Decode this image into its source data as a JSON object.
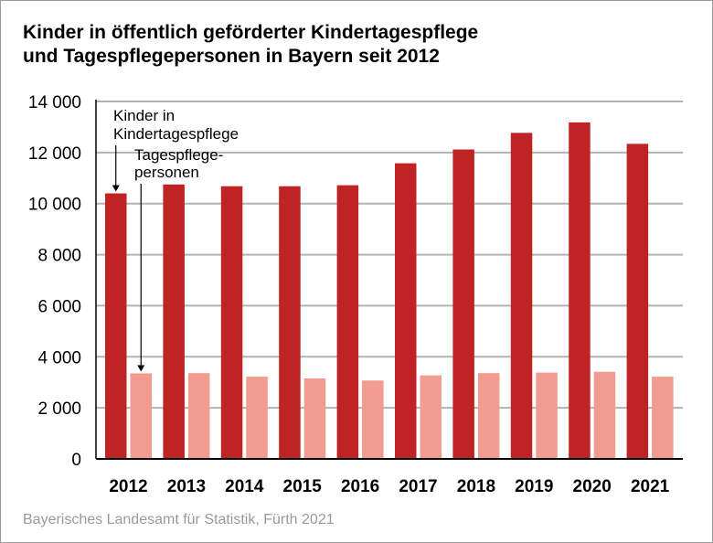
{
  "title_line1": "Kinder in öffentlich geförderter Kindertagespflege",
  "title_line2": "und Tagespflegepersonen in Bayern seit 2012",
  "source": "Bayerisches Landesamt für Statistik, Fürth 2021",
  "colors": {
    "series1": "#c02323",
    "series2": "#f29b90",
    "grid": "#b3b3b3",
    "axis": "#000000"
  },
  "chart_data": {
    "type": "bar",
    "categories": [
      "2012",
      "2013",
      "2014",
      "2015",
      "2016",
      "2017",
      "2018",
      "2019",
      "2020",
      "2021"
    ],
    "series": [
      {
        "name": "",
        "values": [
          10400,
          10750,
          10680,
          10680,
          10720,
          11580,
          12120,
          12770,
          13180,
          12340
        ]
      },
      {
        "name": "",
        "values": [
          3350,
          3360,
          3220,
          3150,
          3070,
          3270,
          3360,
          3380,
          3410,
          3220
        ]
      }
    ],
    "yticks": [
      "0",
      "2 000",
      "4 000",
      "6 000",
      "8 000",
      "10 000",
      "12 000",
      "14 000"
    ],
    "ylim": [
      0,
      14000
    ],
    "grid": true,
    "annotations": [
      {
        "lines": [
          "Kinder in",
          "Kindertagespflege"
        ]
      },
      {
        "lines": [
          "Tagespflege-",
          "personen"
        ]
      }
    ]
  }
}
